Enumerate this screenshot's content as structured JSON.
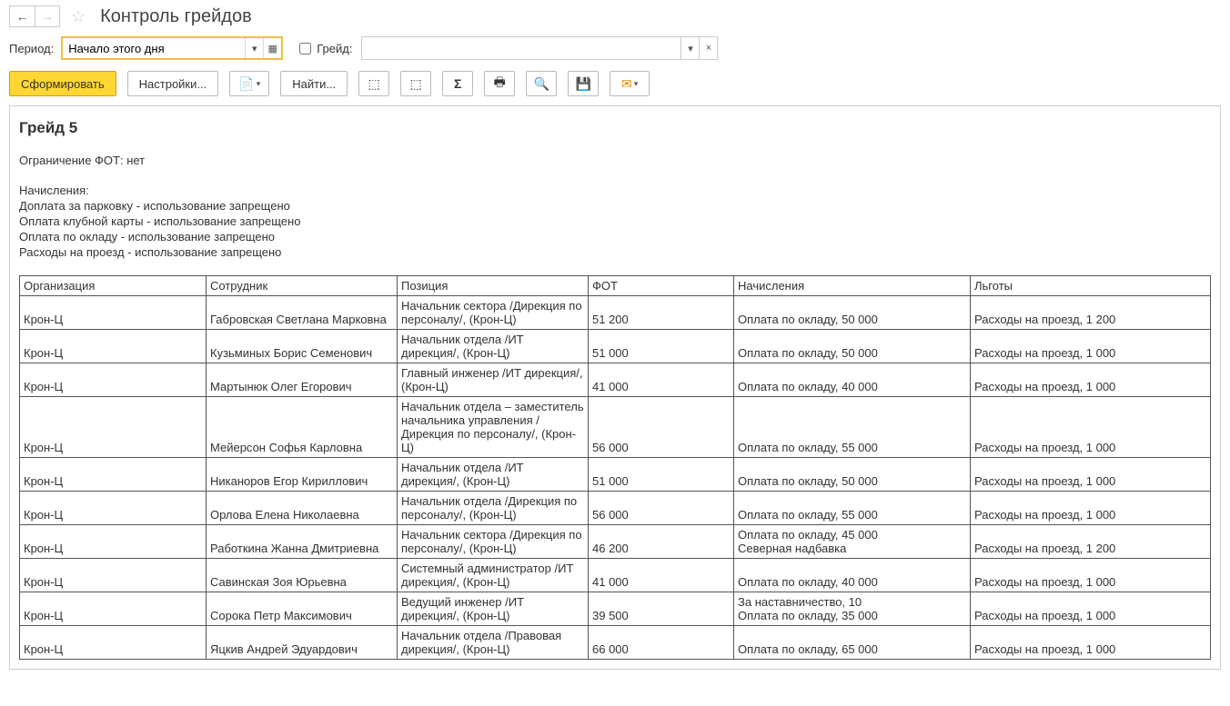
{
  "header": {
    "title": "Контроль грейдов"
  },
  "filters": {
    "period_label": "Период:",
    "period_value": "Начало этого дня",
    "grade_checkbox_label": "Грейд:",
    "grade_value": ""
  },
  "toolbar": {
    "generate": "Сформировать",
    "settings": "Настройки...",
    "find": "Найти..."
  },
  "report": {
    "title": "Грейд 5",
    "fot_limit": "Ограничение ФОТ: нет",
    "accruals_header": "Начисления:",
    "accruals": [
      "Доплата за парковку - использование запрещено",
      "Оплата клубной карты - использование запрещено",
      "Оплата по окладу - использование запрещено",
      "Расходы на проезд - использование запрещено"
    ],
    "columns": [
      "Организация",
      "Сотрудник",
      "Позиция",
      "ФОТ",
      "Начисления",
      "Льготы"
    ],
    "rows": [
      {
        "org": "Крон-Ц",
        "emp": "Габровская Светлана Марковна",
        "pos": "Начальник сектора /Дирекция по персоналу/, (Крон-Ц)",
        "fot": "51 200",
        "nach": "Оплата по окладу, 50 000",
        "lg": "Расходы на проезд, 1 200"
      },
      {
        "org": "Крон-Ц",
        "emp": "Кузьминых Борис Семенович",
        "pos": "Начальник отдела /ИТ дирекция/, (Крон-Ц)",
        "fot": "51 000",
        "nach": "Оплата по окладу, 50 000",
        "lg": "Расходы на проезд, 1 000"
      },
      {
        "org": "Крон-Ц",
        "emp": "Мартынюк Олег Егорович",
        "pos": "Главный инженер /ИТ дирекция/, (Крон-Ц)",
        "fot": "41 000",
        "nach": "Оплата по окладу, 40 000",
        "lg": "Расходы на проезд, 1 000"
      },
      {
        "org": "Крон-Ц",
        "emp": "Мейерсон Софья Карловна",
        "pos": "Начальник отдела – заместитель начальника управления /Дирекция по персоналу/, (Крон-Ц)",
        "fot": "56 000",
        "nach": "Оплата по окладу, 55 000",
        "lg": "Расходы на проезд, 1 000"
      },
      {
        "org": "Крон-Ц",
        "emp": "Никаноров Егор Кириллович",
        "pos": "Начальник отдела /ИТ дирекция/, (Крон-Ц)",
        "fot": "51 000",
        "nach": "Оплата по окладу, 50 000",
        "lg": "Расходы на проезд, 1 000"
      },
      {
        "org": "Крон-Ц",
        "emp": "Орлова Елена Николаевна",
        "pos": "Начальник отдела /Дирекция по персоналу/, (Крон-Ц)",
        "fot": "56 000",
        "nach": "Оплата по окладу, 55 000",
        "lg": "Расходы на проезд, 1 000"
      },
      {
        "org": "Крон-Ц",
        "emp": "Работкина Жанна Дмитриевна",
        "pos": "Начальник сектора /Дирекция по персоналу/, (Крон-Ц)",
        "fot": "46 200",
        "nach": "Оплата по окладу, 45 000\nСеверная надбавка",
        "lg": "Расходы на проезд, 1 200"
      },
      {
        "org": "Крон-Ц",
        "emp": "Савинская Зоя Юрьевна",
        "pos": "Системный администратор /ИТ дирекция/, (Крон-Ц)",
        "fot": "41 000",
        "nach": "Оплата по окладу, 40 000",
        "lg": "Расходы на проезд, 1 000"
      },
      {
        "org": "Крон-Ц",
        "emp": "Сорока Петр Максимович",
        "pos": "Ведущий инженер /ИТ дирекция/, (Крон-Ц)",
        "fot": "39 500",
        "nach": "За наставничество, 10\nОплата по окладу, 35 000",
        "lg": "Расходы на проезд, 1 000"
      },
      {
        "org": "Крон-Ц",
        "emp": "Яцкив Андрей Эдуардович",
        "pos": "Начальник отдела /Правовая дирекция/, (Крон-Ц)",
        "fot": "66 000",
        "nach": "Оплата по окладу, 65 000",
        "lg": "Расходы на проезд, 1 000"
      }
    ]
  }
}
